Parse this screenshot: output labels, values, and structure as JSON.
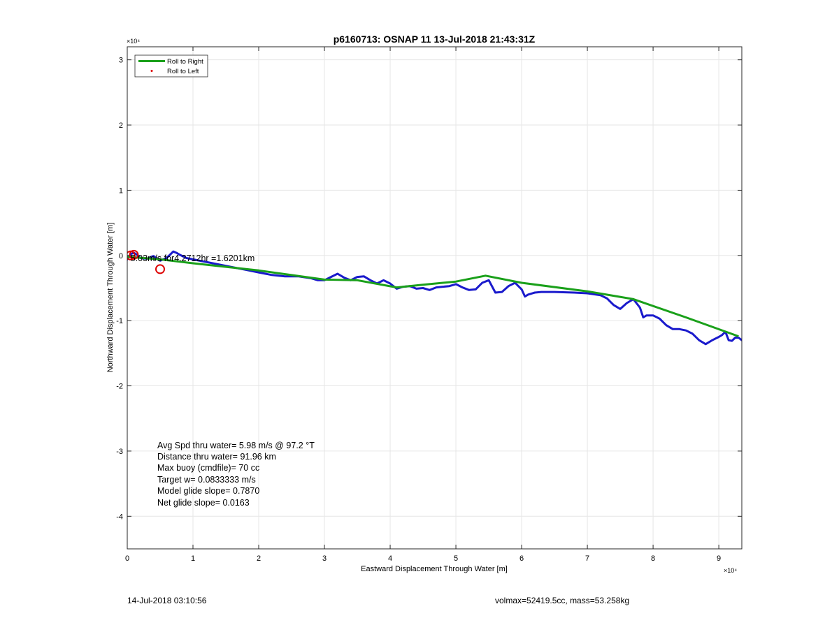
{
  "chart_data": {
    "type": "line",
    "title": "p6160713: OSNAP 11 13-Jul-2018 21:43:31Z",
    "xlabel": "Eastward Displacement Through Water [m]",
    "ylabel": "Northward Displacement Through Water [m]",
    "x_exponent": "×10⁴",
    "y_exponent": "×10⁴",
    "xlim": [
      0,
      9.35
    ],
    "ylim": [
      -4.5,
      3.2
    ],
    "xticks": [
      0,
      1,
      2,
      3,
      4,
      5,
      6,
      7,
      8,
      9
    ],
    "yticks": [
      -4,
      -3,
      -2,
      -1,
      0,
      1,
      2,
      3
    ],
    "xtick_labels": [
      "0",
      "1",
      "2",
      "3",
      "4",
      "5",
      "6",
      "7",
      "8",
      "9"
    ],
    "ytick_labels": [
      "-4",
      "-3",
      "-2",
      "-1",
      "0",
      "1",
      "2",
      "3"
    ],
    "grid": true,
    "legend_position": "top-left",
    "legend": [
      "Roll to Right",
      "Roll to Left"
    ],
    "colors": {
      "roll_right": "#1aa01a",
      "track": "#1a1acc",
      "roll_left": "#dd0000"
    },
    "series": [
      {
        "name": "Roll to Right",
        "x": [
          0.0,
          0.5,
          1.0,
          2.0,
          3.0,
          3.5,
          4.1,
          4.5,
          5.0,
          5.45,
          6.0,
          7.0,
          7.7,
          8.5,
          9.3
        ],
        "y": [
          -0.02,
          -0.06,
          -0.12,
          -0.23,
          -0.37,
          -0.38,
          -0.49,
          -0.45,
          -0.4,
          -0.31,
          -0.42,
          -0.55,
          -0.67,
          -0.95,
          -1.24
        ]
      },
      {
        "name": "track",
        "x": [
          0.0,
          0.05,
          0.1,
          0.15,
          0.2,
          0.3,
          0.4,
          0.5,
          0.6,
          0.7,
          0.75,
          0.8,
          0.9,
          1.0,
          1.1,
          1.2,
          1.4,
          1.6,
          1.8,
          2.0,
          2.2,
          2.4,
          2.6,
          2.8,
          2.9,
          3.0,
          3.1,
          3.2,
          3.3,
          3.4,
          3.5,
          3.6,
          3.7,
          3.8,
          3.9,
          4.0,
          4.1,
          4.2,
          4.3,
          4.4,
          4.5,
          4.6,
          4.7,
          4.8,
          4.9,
          5.0,
          5.1,
          5.2,
          5.3,
          5.4,
          5.5,
          5.6,
          5.7,
          5.8,
          5.9,
          6.0,
          6.05,
          6.1,
          6.2,
          6.3,
          6.5,
          6.8,
          7.0,
          7.2,
          7.3,
          7.4,
          7.5,
          7.6,
          7.7,
          7.8,
          7.85,
          7.9,
          8.0,
          8.1,
          8.2,
          8.3,
          8.4,
          8.5,
          8.6,
          8.7,
          8.8,
          8.9,
          9.0,
          9.05,
          9.1,
          9.15,
          9.2,
          9.25,
          9.3,
          9.35
        ],
        "y": [
          -0.06,
          0.02,
          0.04,
          0.01,
          -0.04,
          -0.05,
          -0.01,
          -0.08,
          -0.04,
          0.06,
          0.04,
          0.01,
          -0.04,
          -0.06,
          -0.08,
          -0.1,
          -0.14,
          -0.18,
          -0.22,
          -0.26,
          -0.3,
          -0.32,
          -0.32,
          -0.35,
          -0.38,
          -0.38,
          -0.33,
          -0.28,
          -0.34,
          -0.38,
          -0.33,
          -0.32,
          -0.38,
          -0.43,
          -0.38,
          -0.43,
          -0.51,
          -0.48,
          -0.47,
          -0.51,
          -0.5,
          -0.53,
          -0.49,
          -0.48,
          -0.47,
          -0.44,
          -0.49,
          -0.53,
          -0.52,
          -0.42,
          -0.38,
          -0.57,
          -0.56,
          -0.47,
          -0.42,
          -0.52,
          -0.63,
          -0.6,
          -0.57,
          -0.56,
          -0.56,
          -0.57,
          -0.58,
          -0.61,
          -0.66,
          -0.76,
          -0.82,
          -0.73,
          -0.67,
          -0.8,
          -0.95,
          -0.92,
          -0.92,
          -0.97,
          -1.07,
          -1.13,
          -1.13,
          -1.15,
          -1.2,
          -1.3,
          -1.36,
          -1.3,
          -1.25,
          -1.22,
          -1.17,
          -1.3,
          -1.31,
          -1.26,
          -1.26,
          -1.3
        ]
      },
      {
        "name": "Roll to Left",
        "x": [
          0.05,
          0.1,
          0.5
        ],
        "y": [
          0.0,
          0.01,
          -0.21
        ]
      }
    ],
    "annotations": {
      "overlay": "5.03m/s for4.2712hr =1.6201km",
      "stats": [
        "Avg Spd thru water=  5.98 m/s @  97.2 °T",
        "Distance thru water= 91.96 km",
        "Max buoy (cmdfile)= 70 cc",
        "Target w= 0.0833333 m/s",
        "Model glide slope= 0.7870",
        "Net glide slope= 0.0163"
      ]
    }
  },
  "footer": {
    "date": "14-Jul-2018 03:10:56",
    "mass_info": "volmax=52419.5cc, mass=53.258kg"
  }
}
